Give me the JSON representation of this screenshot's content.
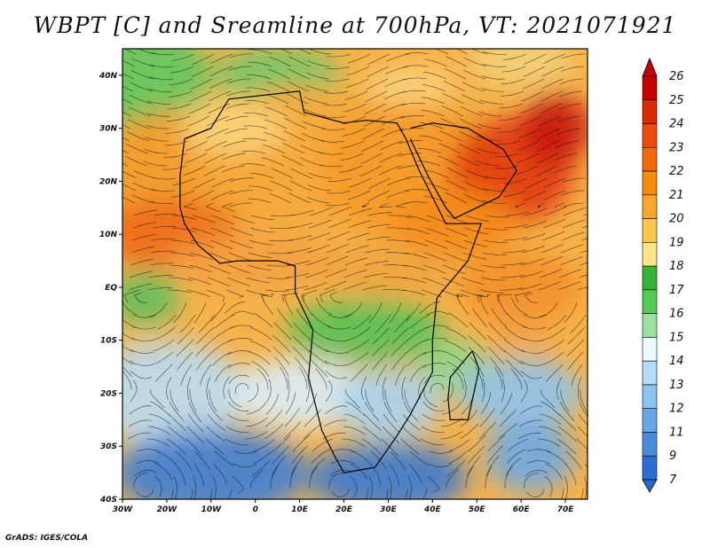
{
  "title": "WBPT [C] and Sreamline at 700hPa, VT: 2021071921",
  "footer": "GrADS: IGES/COLA",
  "map": {
    "lat_ticks": [
      "40N",
      "30N",
      "20N",
      "10N",
      "EQ",
      "10S",
      "20S",
      "30S",
      "40S"
    ],
    "lon_ticks": [
      "30W",
      "20W",
      "10W",
      "0",
      "10E",
      "20E",
      "30E",
      "40E",
      "50E",
      "60E",
      "70E"
    ]
  },
  "colorbar": {
    "labels": [
      "26",
      "25",
      "24",
      "23",
      "22",
      "21",
      "20",
      "19",
      "18",
      "17",
      "16",
      "15",
      "14",
      "13",
      "12",
      "11",
      "9",
      "7"
    ],
    "colors": [
      "#c80000",
      "#dc2a00",
      "#ee4a10",
      "#f26a10",
      "#f58b0f",
      "#f8a830",
      "#f9c750",
      "#fde58c",
      "#36b236",
      "#58c858",
      "#9de09d",
      "#eafaff",
      "#b4daf7",
      "#8fc2f0",
      "#6aa6e6",
      "#4a8bdc",
      "#2c6fd2"
    ]
  }
}
